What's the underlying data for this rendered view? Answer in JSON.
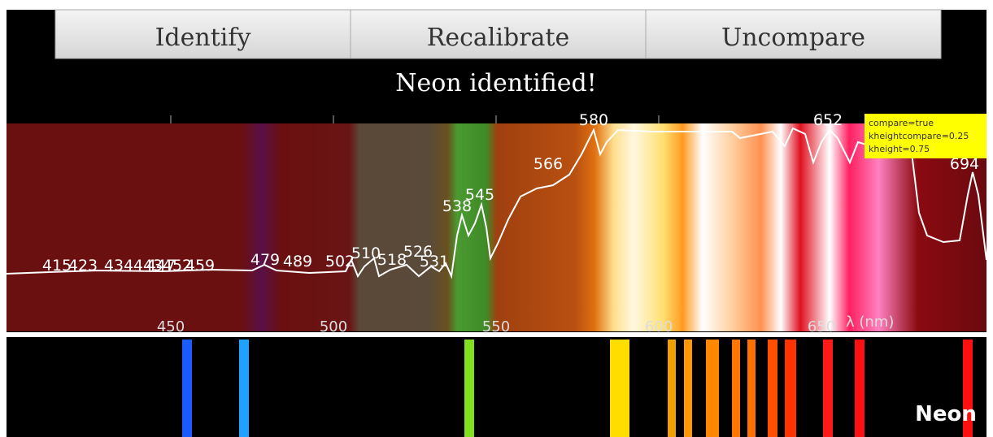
{
  "buttons": [
    "Identify",
    "Recalibrate",
    "Uncompare"
  ],
  "status": "Neon identified!",
  "peaks": [
    415,
    423,
    434,
    443,
    447,
    452,
    459,
    479,
    489,
    502,
    510,
    518,
    526,
    531,
    538,
    545,
    566,
    580,
    652,
    694
  ],
  "axis": {
    "ticks": [
      450,
      500,
      550,
      600,
      650
    ],
    "label": "λ (nm)"
  },
  "tooltip": [
    "compare=true",
    "kheightcompare=0.25",
    "kheight=0.75"
  ],
  "element": "Neon"
}
